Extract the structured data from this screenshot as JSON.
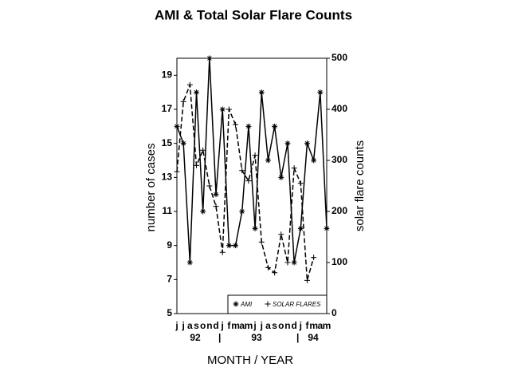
{
  "chart_data": {
    "type": "line",
    "title": "AMI & Total Solar Flare Counts",
    "x_label": "MONTH / YEAR",
    "y_label": "number of cases",
    "y2_label": "solar flare counts",
    "categories": [
      "j",
      "j",
      "a",
      "s",
      "o",
      "n",
      "d",
      "j",
      "f",
      "m",
      "a",
      "m",
      "j",
      "j",
      "a",
      "s",
      "o",
      "n",
      "d",
      "j",
      "f",
      "m",
      "a",
      "m"
    ],
    "year_labels": [
      "92",
      "93",
      "94"
    ],
    "series": [
      {
        "name": "AMI",
        "color": "#000",
        "dash": false,
        "marker": "*",
        "values": [
          16,
          15,
          8,
          18,
          11,
          20,
          12,
          17,
          9,
          9,
          11,
          16,
          10,
          18,
          14,
          16,
          13,
          15,
          8,
          10,
          15,
          14,
          18,
          10
        ]
      },
      {
        "name": "SOLAR FLARES",
        "color": "#000",
        "dash": true,
        "marker": "+",
        "axis": "y2",
        "values": [
          278,
          415,
          448,
          290,
          320,
          250,
          210,
          120,
          400,
          370,
          280,
          260,
          310,
          140,
          90,
          80,
          155,
          100,
          285,
          255,
          65,
          110,
          null,
          null
        ]
      }
    ],
    "ylim": [
      5,
      20
    ],
    "yticks": [
      5,
      7,
      9,
      11,
      13,
      15,
      17,
      19
    ],
    "y2lim": [
      0,
      500
    ],
    "y2ticks": [
      0,
      100,
      200,
      300,
      400,
      500
    ]
  }
}
